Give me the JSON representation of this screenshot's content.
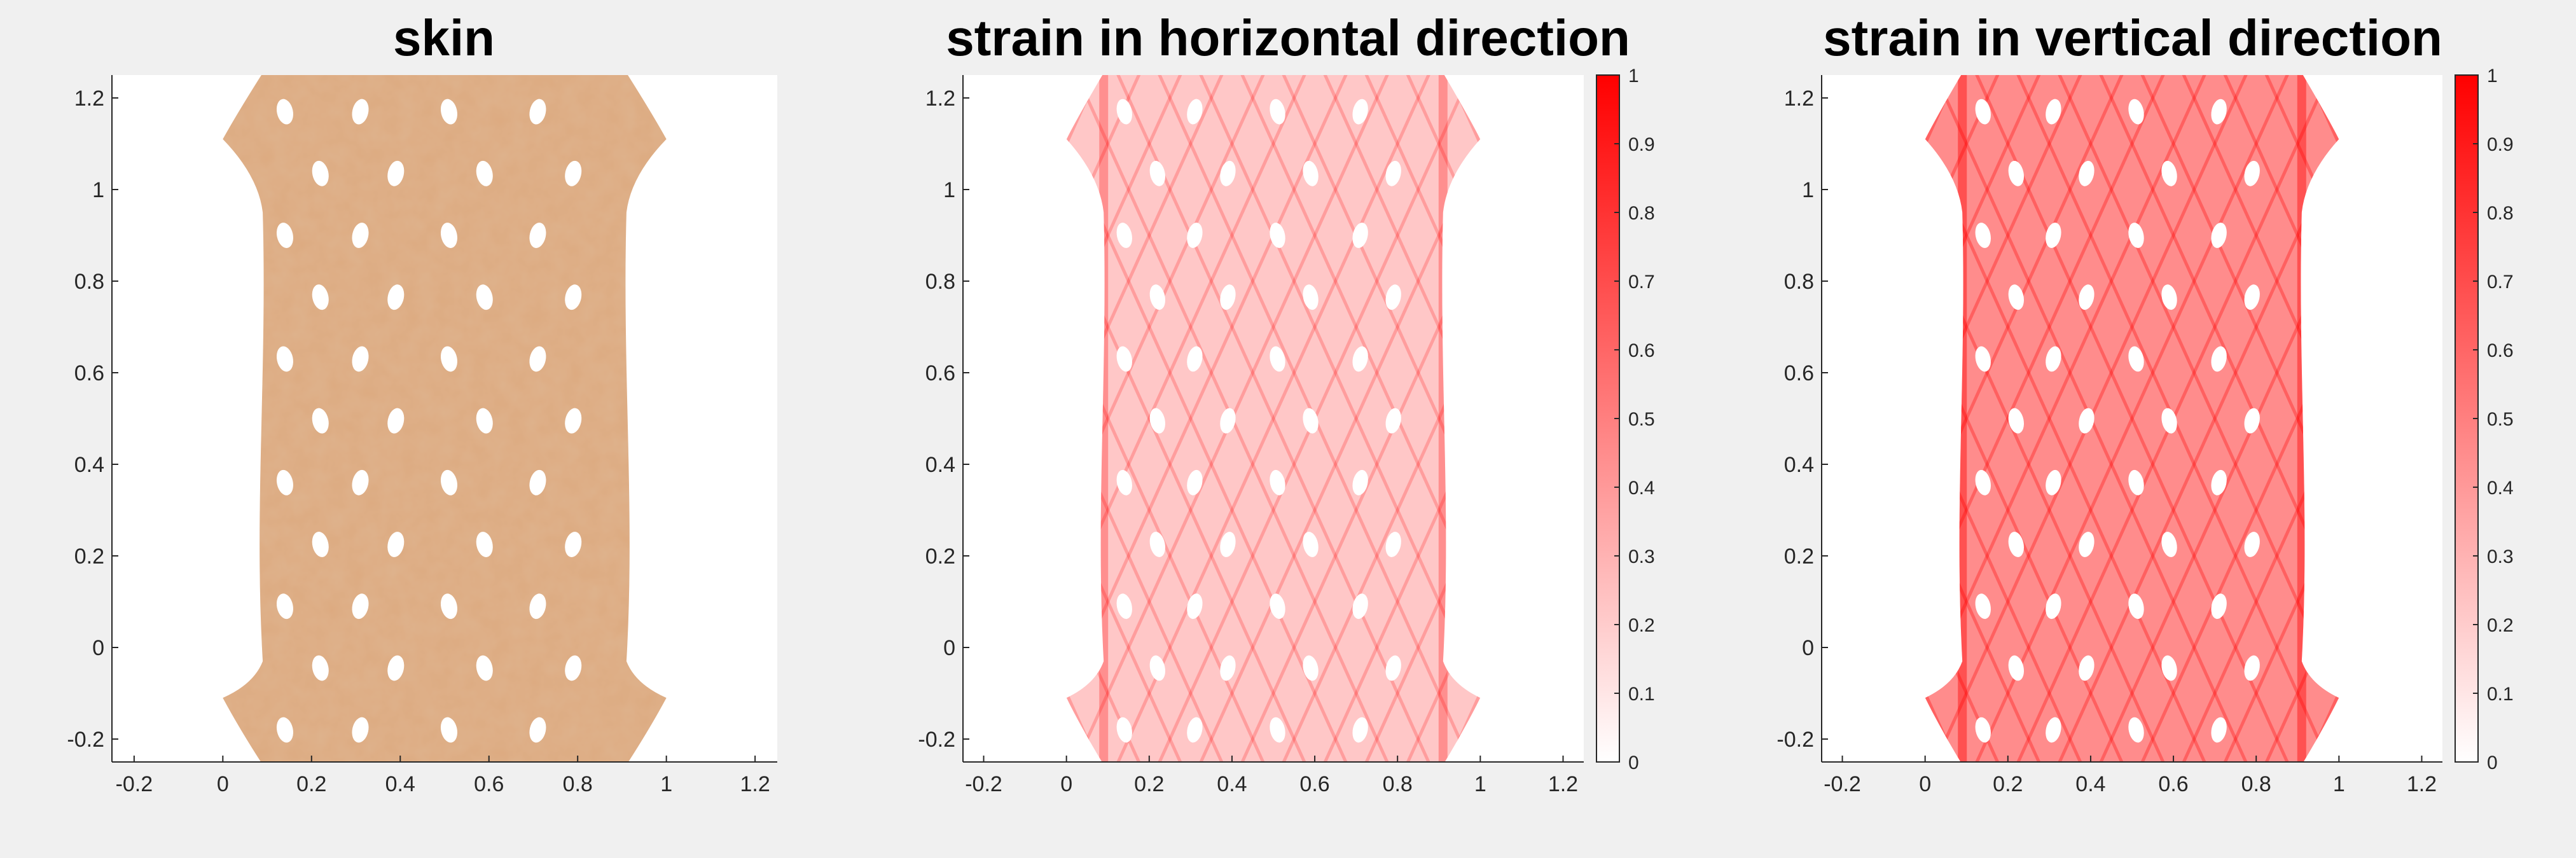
{
  "chart_data": [
    {
      "type": "image",
      "title": "skin",
      "xlim": [
        -0.25,
        1.25
      ],
      "ylim": [
        -0.25,
        1.25
      ],
      "xticks": [
        -0.2,
        0,
        0.2,
        0.4,
        0.6,
        0.8,
        1,
        1.2
      ],
      "yticks": [
        -0.2,
        0,
        0.2,
        0.4,
        0.6,
        0.8,
        1,
        1.2
      ],
      "xtick_labels": [
        "-0.2",
        "0",
        "0.2",
        "0.4",
        "0.6",
        "0.8",
        "1",
        "1.2"
      ],
      "ytick_labels": [
        "-0.2",
        "0",
        "0.2",
        "0.4",
        "0.6",
        "0.8",
        "1",
        "1.2"
      ],
      "fill_color": "#ddaa80"
    },
    {
      "type": "heatmap",
      "title": "strain in horizontal direction",
      "xlim": [
        -0.25,
        1.25
      ],
      "ylim": [
        -0.25,
        1.25
      ],
      "xticks": [
        -0.2,
        0,
        0.2,
        0.4,
        0.6,
        0.8,
        1,
        1.2
      ],
      "yticks": [
        -0.2,
        0,
        0.2,
        0.4,
        0.6,
        0.8,
        1,
        1.2
      ],
      "xtick_labels": [
        "-0.2",
        "0",
        "0.2",
        "0.4",
        "0.6",
        "0.8",
        "1",
        "1.2"
      ],
      "ytick_labels": [
        "-0.2",
        "0",
        "0.2",
        "0.4",
        "0.6",
        "0.8",
        "1",
        "1.2"
      ],
      "colorbar": {
        "range": [
          0,
          1
        ],
        "ticks": [
          0,
          0.1,
          0.2,
          0.3,
          0.4,
          0.5,
          0.6,
          0.7,
          0.8,
          0.9,
          1
        ],
        "tick_labels": [
          "0",
          "0.1",
          "0.2",
          "0.3",
          "0.4",
          "0.5",
          "0.6",
          "0.7",
          "0.8",
          "0.9",
          "1"
        ],
        "colors": [
          "#ffffff",
          "#ff0000"
        ]
      },
      "intensity": 0.22
    },
    {
      "type": "heatmap",
      "title": "strain in vertical direction",
      "xlim": [
        -0.25,
        1.25
      ],
      "ylim": [
        -0.25,
        1.25
      ],
      "xticks": [
        -0.2,
        0,
        0.2,
        0.4,
        0.6,
        0.8,
        1,
        1.2
      ],
      "yticks": [
        -0.2,
        0,
        0.2,
        0.4,
        0.6,
        0.8,
        1,
        1.2
      ],
      "xtick_labels": [
        "-0.2",
        "0",
        "0.2",
        "0.4",
        "0.6",
        "0.8",
        "1",
        "1.2"
      ],
      "ytick_labels": [
        "-0.2",
        "0",
        "0.2",
        "0.4",
        "0.6",
        "0.8",
        "1",
        "1.2"
      ],
      "colorbar": {
        "range": [
          0,
          1
        ],
        "ticks": [
          0,
          0.1,
          0.2,
          0.3,
          0.4,
          0.5,
          0.6,
          0.7,
          0.8,
          0.9,
          1
        ],
        "tick_labels": [
          "0",
          "0.1",
          "0.2",
          "0.3",
          "0.4",
          "0.5",
          "0.6",
          "0.7",
          "0.8",
          "0.9",
          "1"
        ],
        "colors": [
          "#ffffff",
          "#ff0000"
        ]
      },
      "intensity": 0.45
    }
  ]
}
